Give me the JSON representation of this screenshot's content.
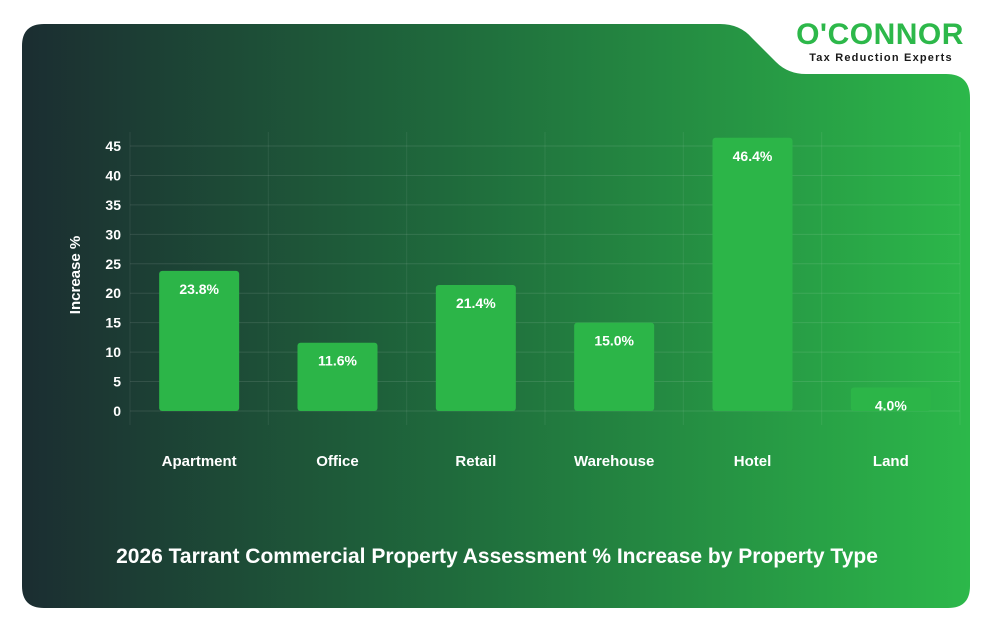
{
  "brand": {
    "name": "O'CONNOR",
    "tagline": "Tax Reduction Experts"
  },
  "chart_title": "2026 Tarrant Commercial Property Assessment % Increase by Property Type",
  "colors": {
    "bar": "#2cb548",
    "bg_dark": "#1c2f33",
    "bg_light": "#2db84a",
    "brand": "#2db84a"
  },
  "chart_data": {
    "type": "bar",
    "title": "2026 Tarrant Commercial Property Assessment % Increase by Property Type",
    "categories": [
      "Apartment",
      "Office",
      "Retail",
      "Warehouse",
      "Hotel",
      "Land"
    ],
    "values": [
      23.8,
      11.6,
      21.4,
      15.0,
      46.4,
      4.0
    ],
    "data_labels": [
      "23.8%",
      "11.6%",
      "21.4%",
      "15.0%",
      "46.4%",
      "4.0%"
    ],
    "xlabel": "",
    "ylabel": "Increase %",
    "ylim": [
      0,
      45
    ],
    "yticks": [
      "0",
      "5",
      "10",
      "15",
      "20",
      "25",
      "30",
      "35",
      "40",
      "45"
    ],
    "grid": true,
    "legend": "none"
  }
}
